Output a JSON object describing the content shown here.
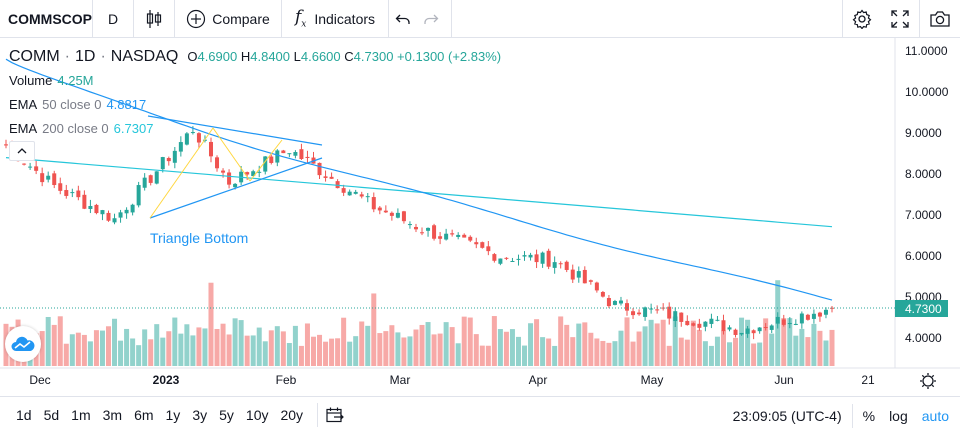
{
  "toolbar": {
    "symbol": "COMMSCOPE",
    "interval": "D",
    "compare_label": "Compare",
    "indicators_label": "Indicators"
  },
  "legend": {
    "symbol": "COMM",
    "interval": "1D",
    "exchange": "NASDAQ",
    "open_label": "O",
    "open": "4.6900",
    "high_label": "H",
    "high": "4.8400",
    "low_label": "L",
    "low": "4.6600",
    "close_label": "C",
    "close": "4.7300",
    "change": "+0.1300 (+2.83%)",
    "volume_label": "Volume",
    "volume": "4.25M",
    "ema50_label": "EMA",
    "ema50_params": "50 close 0",
    "ema50_value": "4.8817",
    "ema200_label": "EMA",
    "ema200_params": "200 close 0",
    "ema200_value": "6.7307"
  },
  "annotation": {
    "triangle_label": "Triangle Bottom"
  },
  "bottom": {
    "ranges": [
      "1d",
      "5d",
      "1m",
      "3m",
      "6m",
      "1y",
      "3y",
      "5y",
      "10y",
      "20y"
    ],
    "time": "23:09:05 (UTC-4)",
    "percent": "%",
    "log": "log",
    "auto": "auto"
  },
  "colors": {
    "up": "#26a69a",
    "down": "#ef5350",
    "ema50": "#2196f3",
    "ema200": "#26c6da",
    "pattern": "#2196f3",
    "zigzag": "#ffd740"
  },
  "chart_data": {
    "type": "candlestick",
    "y_ticks": [
      "11.0000",
      "10.0000",
      "9.0000",
      "8.0000",
      "7.0000",
      "6.0000",
      "5.0000",
      "4.0000"
    ],
    "ylim": [
      3.3,
      11.3
    ],
    "x_ticks": [
      "Dec",
      "2023",
      "Feb",
      "Mar",
      "Apr",
      "May",
      "Jun",
      "21"
    ],
    "last_price": "4.7300",
    "ohlc_key_points": [
      {
        "date": "Dec 1",
        "close": 8.7
      },
      {
        "date": "Dec 12",
        "close": 7.7
      },
      {
        "date": "Dec 28",
        "close": 6.9
      },
      {
        "date": "Jan 18",
        "close": 9.1
      },
      {
        "date": "Jan 27",
        "close": 7.8
      },
      {
        "date": "Feb 10",
        "close": 8.6
      },
      {
        "date": "Mar 1",
        "close": 7.2
      },
      {
        "date": "Mar 15",
        "close": 6.6
      },
      {
        "date": "Apr 1",
        "close": 6.0
      },
      {
        "date": "Apr 14",
        "close": 5.9
      },
      {
        "date": "May 1",
        "close": 4.8
      },
      {
        "date": "May 12",
        "close": 4.6
      },
      {
        "date": "Jun 1",
        "close": 4.2
      },
      {
        "date": "Jun 16",
        "close": 4.73
      }
    ],
    "series": [
      {
        "name": "EMA 50 close 0",
        "last": 4.8817
      },
      {
        "name": "EMA 200 close 0",
        "last": 6.7307
      },
      {
        "name": "Volume",
        "last": "4.25M"
      }
    ]
  }
}
